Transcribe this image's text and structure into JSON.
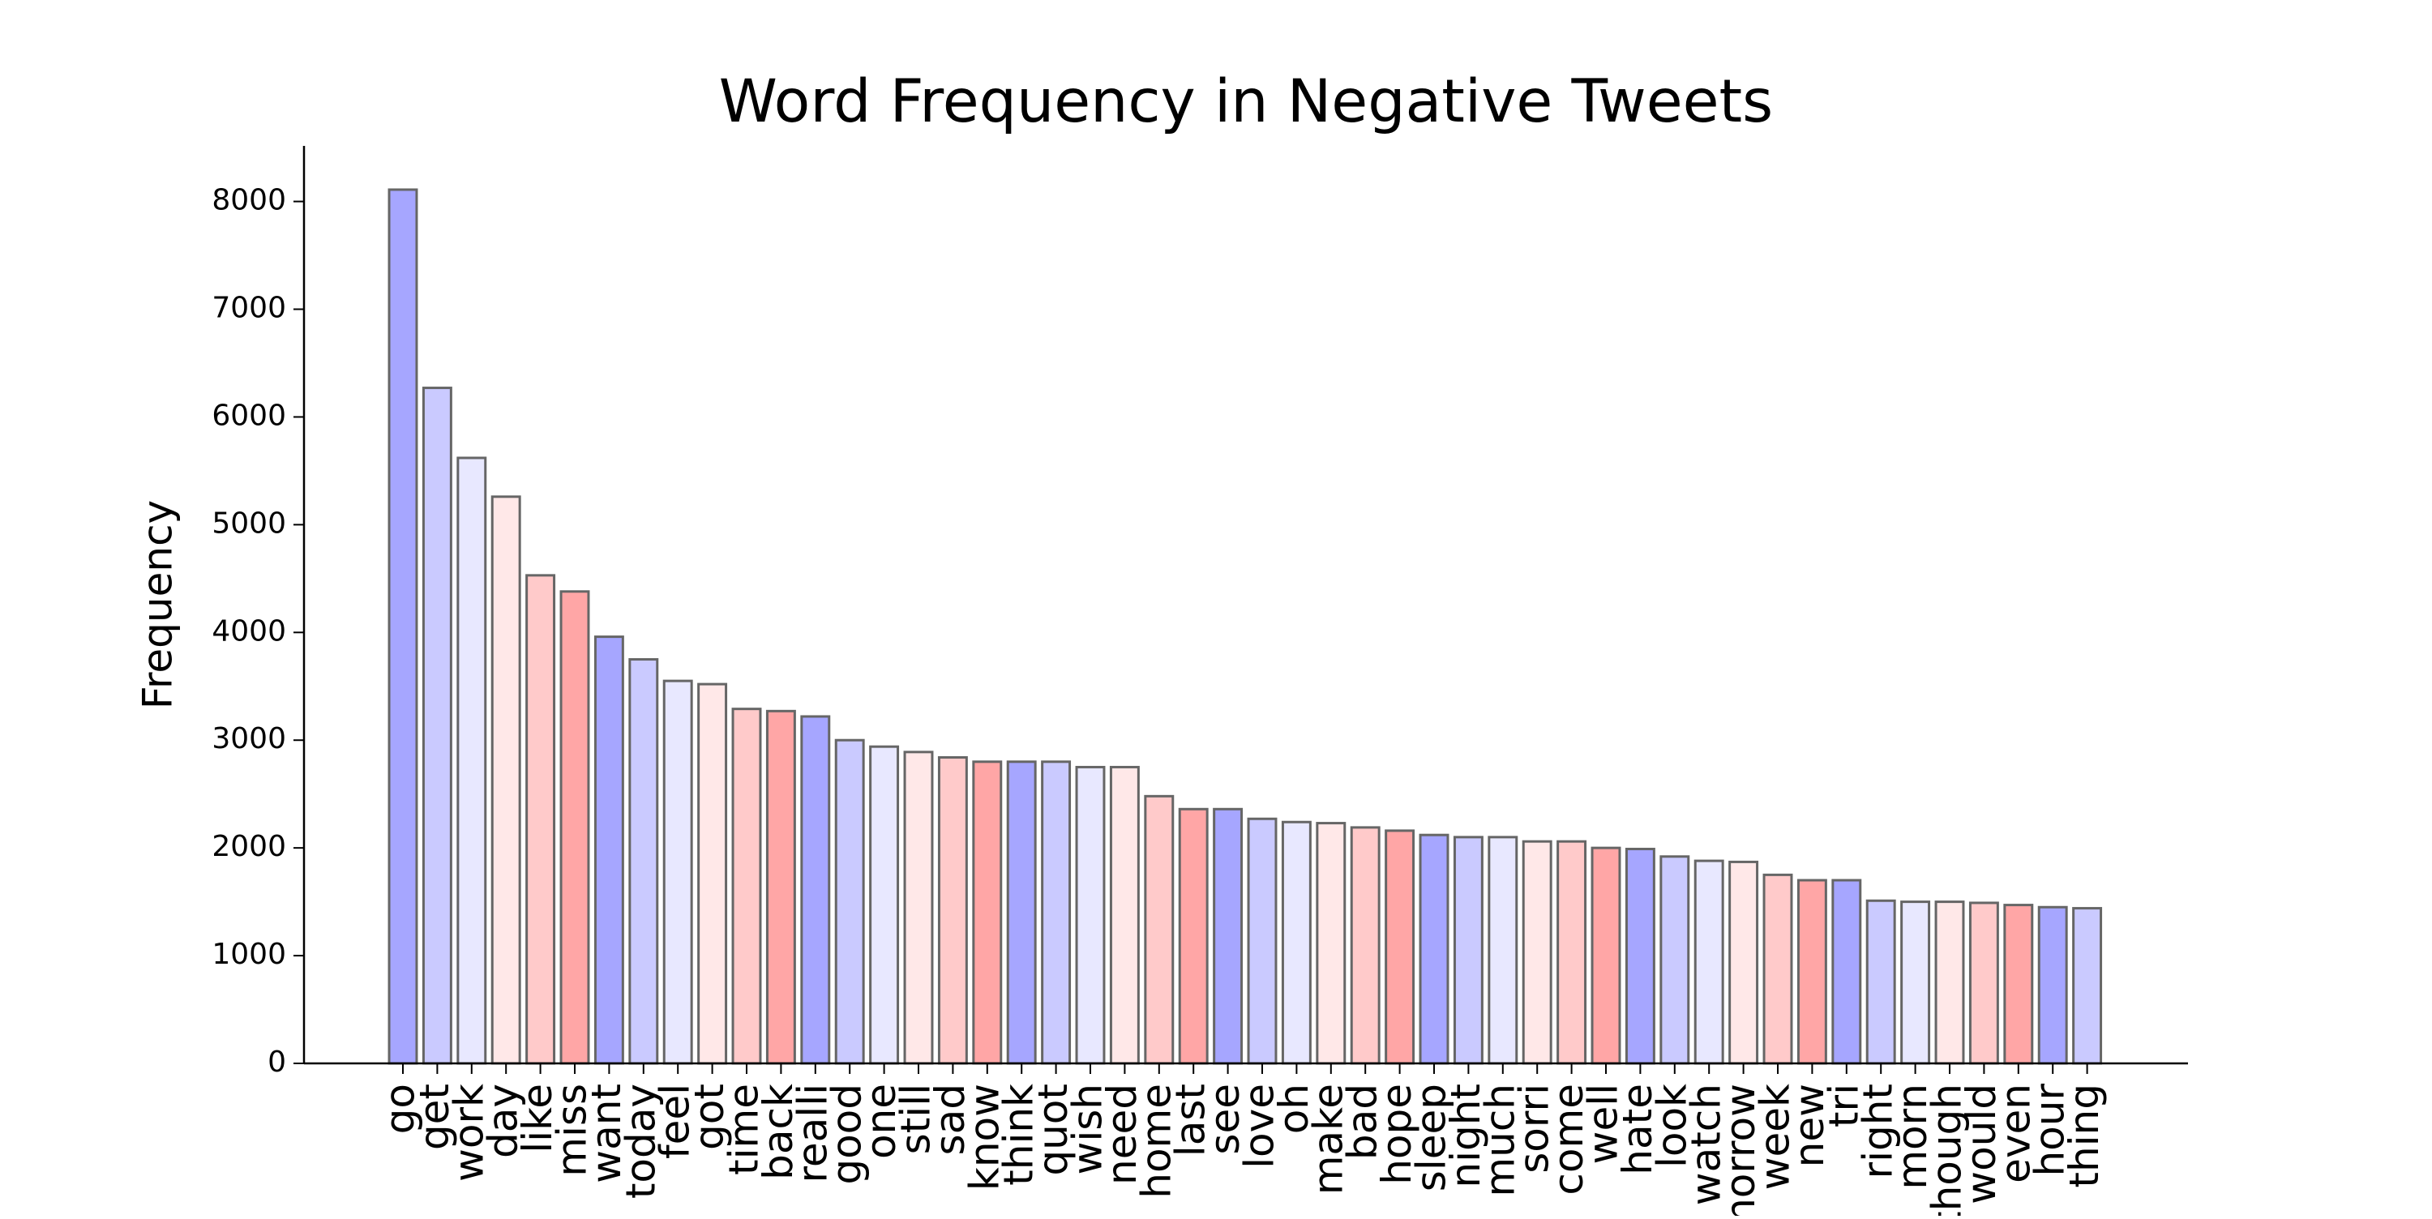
{
  "chart_data": {
    "type": "bar",
    "title": "Word Frequency in Negative Tweets",
    "y_label": "Frequency",
    "categories": [
      "go",
      "get",
      "work",
      "day",
      "like",
      "miss",
      "want",
      "today",
      "feel",
      "got",
      "time",
      "back",
      "realli",
      "good",
      "one",
      "still",
      "sad",
      "know",
      "think",
      "quot",
      "wish",
      "need",
      "home",
      "last",
      "see",
      "love",
      "oh",
      "make",
      "bad",
      "hope",
      "sleep",
      "night",
      "much",
      "sorri",
      "come",
      "well",
      "hate",
      "look",
      "watch",
      "tomorrow",
      "week",
      "new",
      "tri",
      "right",
      "morn",
      "though",
      "would",
      "even",
      "hour",
      "thing"
    ],
    "values": [
      8110,
      6270,
      5620,
      5260,
      4530,
      4380,
      3960,
      3750,
      3550,
      3520,
      3290,
      3270,
      3220,
      3000,
      2940,
      2890,
      2840,
      2800,
      2800,
      2800,
      2750,
      2750,
      2480,
      2360,
      2360,
      2270,
      2240,
      2230,
      2190,
      2160,
      2120,
      2100,
      2100,
      2060,
      2060,
      2000,
      1990,
      1920,
      1880,
      1870,
      1750,
      1700,
      1700,
      1510,
      1500,
      1500,
      1490,
      1470,
      1450,
      1440
    ],
    "colors": [
      "#a6a6ff",
      "#cacaff",
      "#e8e8ff",
      "#ffe8e8",
      "#ffcaca",
      "#ffa6a6"
    ],
    "ylim": [
      0,
      8516
    ],
    "yticks": [
      0,
      1000,
      2000,
      3000,
      4000,
      5000,
      6000,
      7000,
      8000
    ]
  }
}
